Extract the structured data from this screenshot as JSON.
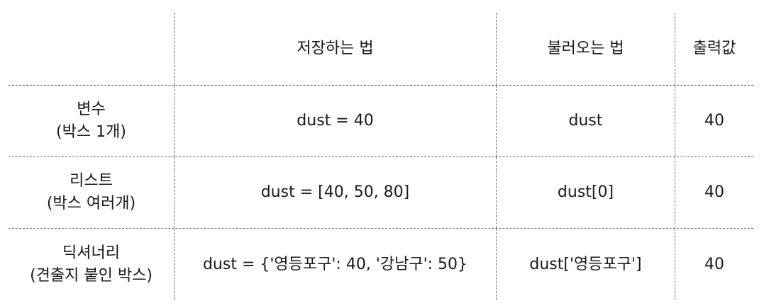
{
  "table": {
    "headers": [
      "",
      "저장하는 법",
      "불러오는 법",
      "출력값"
    ],
    "rows": [
      {
        "type_line1": "변수",
        "type_line2": "(박스 1개)",
        "save": "dust = 40",
        "load": "dust",
        "output": "40"
      },
      {
        "type_line1": "리스트",
        "type_line2": "(박스 여러개)",
        "save": "dust = [40, 50, 80]",
        "load": "dust[0]",
        "output": "40"
      },
      {
        "type_line1": "딕셔너리",
        "type_line2": "(견출지 붙인 박스)",
        "save": "dust = {'영등포구': 40, '강남구': 50}",
        "load": "dust['영등포구']",
        "output": "40"
      }
    ]
  }
}
